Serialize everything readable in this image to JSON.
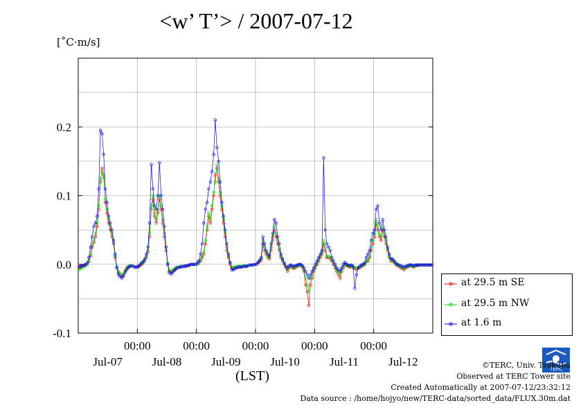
{
  "title": "<w’ T’> / 2007-07-12",
  "y_unit": "[˚C·m/s]",
  "x_unit": "(LST)",
  "legend": {
    "items": [
      {
        "label": "at 29.5 m SE",
        "color": "#ff0000"
      },
      {
        "label": "at 29.5 m NW",
        "color": "#00dd00"
      },
      {
        "label": "at 1.6 m",
        "color": "#0000ff"
      }
    ]
  },
  "credits": {
    "copyright": "©TERC, Univ. Tsukuba",
    "site": "Observed at TERC Tower site",
    "created": "Created Automatically at 2007-07-12/23:32:12",
    "source": "Data source : /home/hojyo/new/TERC-data/sorted_data/FLUX.30m.dat"
  },
  "logo_text": "TERC",
  "chart_data": {
    "type": "line",
    "title": "<w’ T’> / 2007-07-12",
    "ylabel": "[˚C·m/s]",
    "xlabel": "(LST)",
    "ylim": [
      -0.1,
      0.3
    ],
    "yticks": [
      -0.1,
      0.0,
      0.1,
      0.2
    ],
    "ytick_labels": [
      "-0.1",
      "0.0",
      "0.1",
      "0.2"
    ],
    "xlim_days": [
      0,
      6
    ],
    "xticks_days": [
      1,
      2,
      3,
      4,
      5
    ],
    "xtick_labels": [
      "00:00",
      "00:00",
      "00:00",
      "00:00",
      "00:00"
    ],
    "day_labels": [
      {
        "day": 0.5,
        "label": "Jul-07"
      },
      {
        "day": 1.5,
        "label": "Jul-08"
      },
      {
        "day": 2.5,
        "label": "Jul-09"
      },
      {
        "day": 3.5,
        "label": "Jul-10"
      },
      {
        "day": 4.5,
        "label": "Jul-11"
      },
      {
        "day": 5.5,
        "label": "Jul-12"
      }
    ],
    "grid": true,
    "series": [
      {
        "name": "at 29.5 m SE",
        "color": "#ff0000",
        "values": [
          -0.005,
          -0.004,
          -0.003,
          -0.002,
          -0.001,
          0.0,
          0.004,
          0.012,
          0.025,
          0.032,
          0.04,
          0.055,
          0.08,
          0.12,
          0.14,
          0.13,
          0.09,
          0.075,
          0.06,
          0.05,
          0.04,
          0.03,
          0.01,
          -0.005,
          -0.012,
          -0.015,
          -0.018,
          -0.016,
          -0.01,
          -0.006,
          -0.004,
          -0.003,
          -0.002,
          -0.003,
          -0.004,
          -0.004,
          -0.004,
          -0.002,
          0.0,
          0.002,
          0.005,
          0.01,
          0.018,
          0.04,
          0.08,
          0.095,
          0.07,
          0.06,
          0.075,
          0.095,
          0.08,
          0.06,
          0.04,
          0.02,
          0.0,
          -0.01,
          -0.012,
          -0.01,
          -0.008,
          -0.006,
          -0.005,
          -0.004,
          -0.004,
          -0.003,
          -0.003,
          -0.003,
          -0.002,
          -0.002,
          0.0,
          0.0,
          0.0,
          0.0,
          0.0,
          0.002,
          0.005,
          0.01,
          0.015,
          0.03,
          0.05,
          0.07,
          0.06,
          0.08,
          0.1,
          0.13,
          0.14,
          0.12,
          0.1,
          0.08,
          0.06,
          0.04,
          0.02,
          0.01,
          0.0,
          -0.005,
          -0.006,
          -0.005,
          -0.005,
          -0.004,
          -0.004,
          -0.004,
          -0.003,
          -0.003,
          -0.003,
          -0.002,
          -0.001,
          -0.001,
          -0.001,
          0.0,
          0.0,
          0.002,
          0.004,
          0.006,
          0.03,
          0.02,
          0.015,
          0.01,
          0.008,
          0.02,
          0.035,
          0.05,
          0.04,
          0.03,
          0.02,
          0.01,
          0.005,
          0.0,
          -0.005,
          -0.01,
          -0.005,
          -0.003,
          -0.005,
          -0.006,
          -0.004,
          -0.003,
          -0.002,
          -0.001,
          -0.004,
          -0.01,
          -0.03,
          -0.04,
          -0.06,
          -0.03,
          -0.02,
          -0.01,
          -0.005,
          0.0,
          0.005,
          0.01,
          0.015,
          0.03,
          0.02,
          0.01,
          0.01,
          0.008,
          0.005,
          0.0,
          -0.005,
          -0.01,
          -0.015,
          -0.02,
          -0.01,
          -0.005,
          0.0,
          -0.002,
          -0.003,
          -0.004,
          -0.003,
          -0.005,
          -0.006,
          -0.008,
          -0.006,
          -0.005,
          -0.003,
          -0.002,
          0.0,
          0.004,
          0.005,
          0.01,
          0.02,
          0.03,
          0.04,
          0.06,
          0.05,
          0.04,
          0.035,
          0.05,
          0.04,
          0.03,
          0.02,
          0.01,
          0.005,
          0.005,
          0.003,
          0.0,
          -0.002,
          -0.003,
          -0.005,
          -0.006,
          -0.008,
          -0.005,
          -0.004,
          -0.003,
          -0.002,
          -0.003,
          -0.004,
          -0.002,
          -0.002,
          -0.001,
          -0.001,
          -0.001,
          -0.001,
          -0.001,
          -0.001,
          -0.001,
          -0.001,
          -0.001
        ]
      },
      {
        "name": "at 29.5 m NW",
        "color": "#00dd00",
        "values": [
          -0.008,
          -0.006,
          -0.005,
          -0.003,
          -0.002,
          0.0,
          0.005,
          0.015,
          0.028,
          0.035,
          0.045,
          0.06,
          0.085,
          0.125,
          0.135,
          0.125,
          0.095,
          0.08,
          0.065,
          0.055,
          0.045,
          0.032,
          0.012,
          -0.003,
          -0.01,
          -0.013,
          -0.015,
          -0.014,
          -0.009,
          -0.005,
          -0.003,
          -0.002,
          -0.002,
          -0.003,
          -0.004,
          -0.004,
          -0.003,
          -0.001,
          0.001,
          0.003,
          0.006,
          0.012,
          0.02,
          0.045,
          0.085,
          0.1,
          0.075,
          0.065,
          0.08,
          0.1,
          0.085,
          0.065,
          0.045,
          0.025,
          0.002,
          -0.008,
          -0.011,
          -0.009,
          -0.007,
          -0.005,
          -0.004,
          -0.004,
          -0.003,
          -0.003,
          -0.003,
          -0.002,
          -0.002,
          -0.001,
          0.0,
          0.0,
          0.0,
          0.0,
          0.0,
          0.003,
          0.006,
          0.012,
          0.018,
          0.035,
          0.055,
          0.075,
          0.065,
          0.085,
          0.105,
          0.12,
          0.145,
          0.125,
          0.105,
          0.085,
          0.065,
          0.045,
          0.025,
          0.012,
          0.002,
          -0.004,
          -0.005,
          -0.004,
          -0.004,
          -0.003,
          -0.003,
          -0.003,
          -0.003,
          -0.002,
          -0.002,
          -0.002,
          -0.001,
          -0.001,
          -0.001,
          0.0,
          0.0,
          0.003,
          0.005,
          0.008,
          0.035,
          0.025,
          0.018,
          0.012,
          0.01,
          0.025,
          0.04,
          0.055,
          0.045,
          0.035,
          0.022,
          0.012,
          0.006,
          0.001,
          -0.003,
          -0.008,
          -0.004,
          -0.002,
          -0.004,
          -0.005,
          -0.003,
          -0.002,
          -0.001,
          -0.001,
          -0.003,
          -0.008,
          -0.02,
          -0.03,
          -0.04,
          -0.02,
          -0.015,
          -0.008,
          -0.004,
          0.001,
          0.006,
          0.012,
          0.018,
          0.035,
          0.025,
          0.012,
          0.012,
          0.01,
          0.006,
          0.001,
          -0.004,
          -0.008,
          -0.012,
          -0.015,
          -0.008,
          -0.004,
          0.001,
          -0.001,
          -0.002,
          -0.003,
          -0.002,
          -0.004,
          -0.005,
          -0.006,
          -0.005,
          -0.004,
          -0.002,
          -0.001,
          0.001,
          0.005,
          0.006,
          0.012,
          0.025,
          0.035,
          0.045,
          0.065,
          0.055,
          0.045,
          0.04,
          0.055,
          0.045,
          0.035,
          0.022,
          0.012,
          0.006,
          0.006,
          0.004,
          0.001,
          -0.001,
          -0.002,
          -0.004,
          -0.005,
          -0.006,
          -0.004,
          -0.003,
          -0.002,
          -0.002,
          -0.002,
          -0.003,
          -0.002,
          -0.001,
          -0.001,
          -0.001,
          -0.001,
          -0.001,
          -0.001,
          -0.001,
          -0.001,
          -0.001,
          -0.001
        ]
      },
      {
        "name": "at 1.6 m",
        "color": "#0000ff",
        "values": [
          -0.004,
          -0.003,
          -0.002,
          -0.001,
          0.0,
          0.002,
          0.01,
          0.025,
          0.04,
          0.055,
          0.06,
          0.07,
          0.11,
          0.195,
          0.19,
          0.16,
          0.11,
          0.09,
          0.07,
          0.06,
          0.05,
          0.035,
          0.015,
          -0.005,
          -0.015,
          -0.018,
          -0.02,
          -0.017,
          -0.012,
          -0.008,
          -0.005,
          -0.003,
          -0.002,
          -0.003,
          -0.004,
          -0.004,
          -0.003,
          -0.001,
          0.002,
          0.004,
          0.008,
          0.015,
          0.025,
          0.06,
          0.145,
          0.11,
          0.085,
          0.08,
          0.1,
          0.148,
          0.1,
          0.08,
          0.055,
          0.025,
          0.0,
          -0.012,
          -0.014,
          -0.012,
          -0.009,
          -0.007,
          -0.005,
          -0.004,
          -0.004,
          -0.003,
          -0.003,
          -0.002,
          -0.002,
          -0.001,
          0.0,
          0.0,
          0.0,
          0.0,
          0.002,
          0.005,
          0.015,
          0.03,
          0.06,
          0.08,
          0.09,
          0.11,
          0.12,
          0.135,
          0.16,
          0.21,
          0.17,
          0.15,
          0.12,
          0.09,
          0.07,
          0.05,
          0.03,
          0.015,
          0.003,
          -0.008,
          -0.008,
          -0.006,
          -0.005,
          -0.004,
          -0.004,
          -0.004,
          -0.003,
          -0.003,
          -0.003,
          -0.002,
          -0.001,
          -0.001,
          -0.001,
          0.0,
          0.0,
          0.003,
          0.006,
          0.01,
          0.04,
          0.03,
          0.02,
          0.015,
          0.012,
          0.03,
          0.045,
          0.065,
          0.06,
          0.04,
          0.03,
          0.015,
          0.008,
          0.002,
          -0.003,
          -0.005,
          -0.002,
          -0.001,
          -0.002,
          -0.003,
          -0.002,
          -0.001,
          0.0,
          0.0,
          -0.002,
          -0.005,
          -0.01,
          -0.015,
          -0.02,
          -0.015,
          -0.01,
          -0.005,
          0.0,
          0.005,
          0.01,
          0.015,
          0.02,
          0.155,
          0.05,
          0.03,
          0.025,
          0.02,
          0.01,
          0.005,
          0.0,
          -0.005,
          -0.008,
          -0.01,
          -0.005,
          0.0,
          0.003,
          0.0,
          -0.001,
          -0.002,
          -0.001,
          -0.003,
          -0.035,
          -0.015,
          -0.005,
          -0.003,
          -0.001,
          0.0,
          0.002,
          0.01,
          0.015,
          0.02,
          0.035,
          0.045,
          0.05,
          0.08,
          0.085,
          0.06,
          0.05,
          0.065,
          0.05,
          0.04,
          0.025,
          0.015,
          0.008,
          0.008,
          0.005,
          0.002,
          0.0,
          -0.001,
          -0.002,
          -0.003,
          -0.004,
          -0.003,
          -0.002,
          -0.001,
          -0.001,
          -0.001,
          -0.002,
          -0.001,
          -0.001,
          -0.001,
          -0.001,
          -0.001,
          -0.001,
          -0.001,
          -0.001,
          -0.001,
          -0.001,
          -0.001
        ]
      }
    ]
  }
}
